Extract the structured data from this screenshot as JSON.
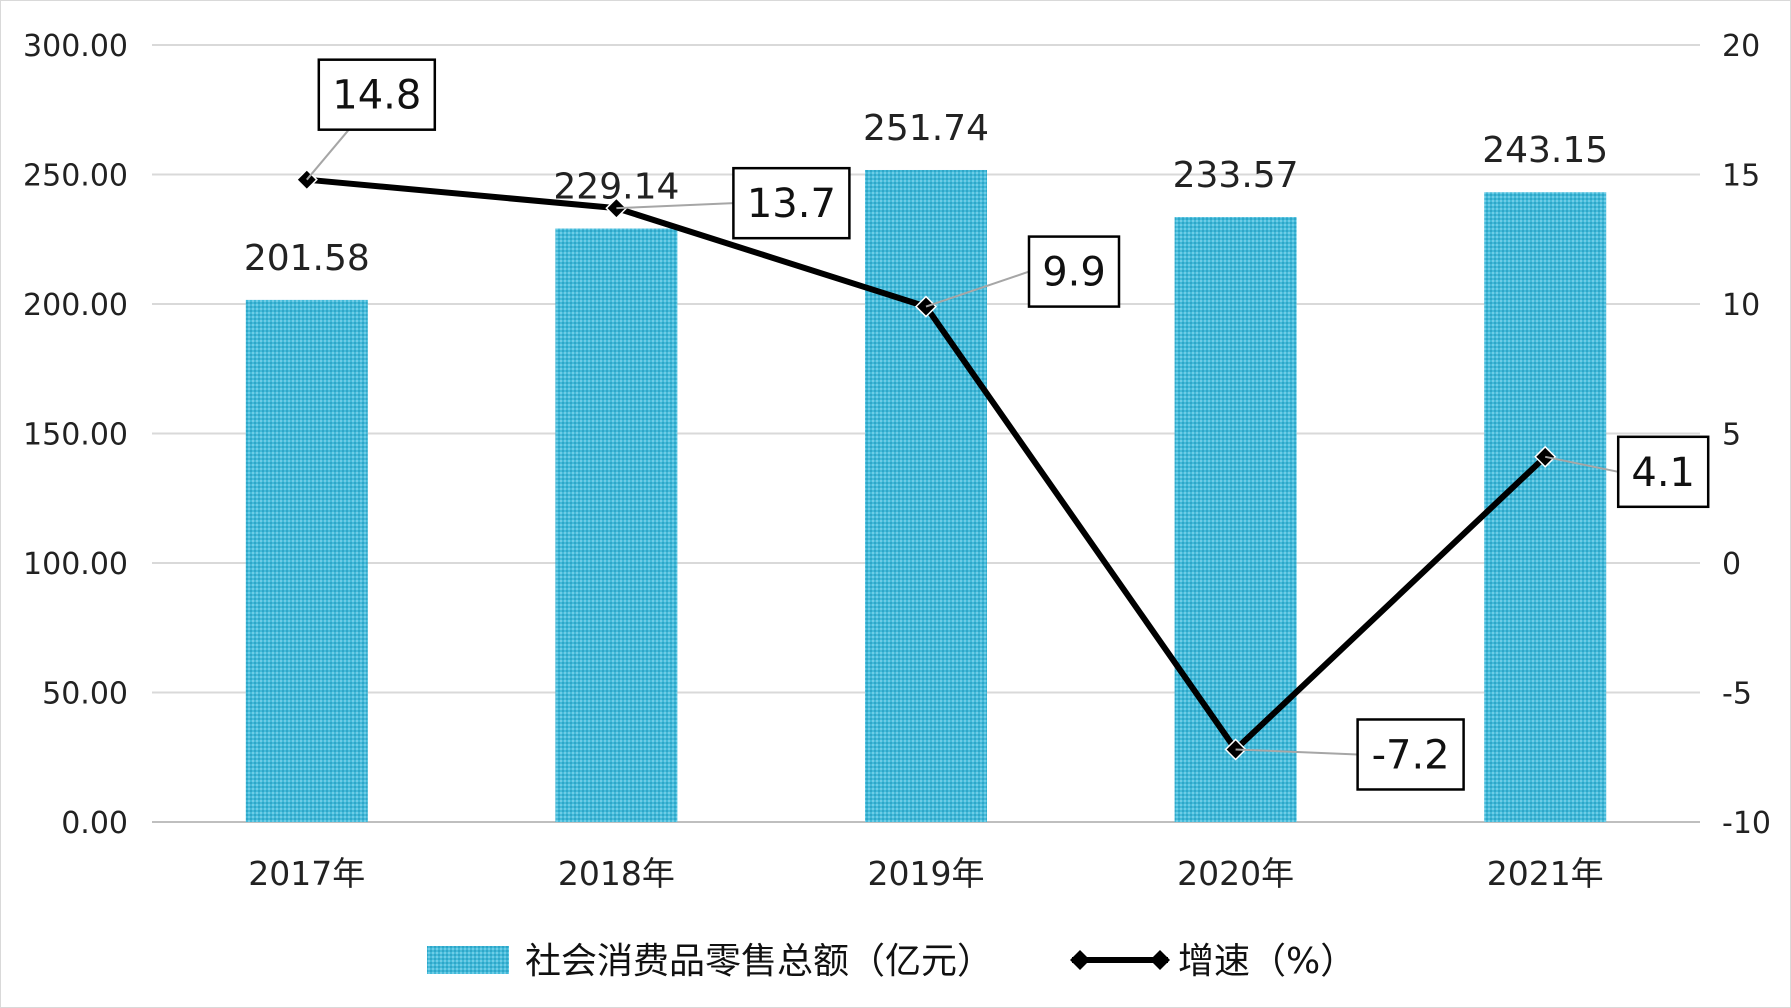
{
  "chart_data": {
    "type": "bar",
    "title": "",
    "categories": [
      "2017年",
      "2018年",
      "2019年",
      "2020年",
      "2021年"
    ],
    "series": [
      {
        "name": "社会消费品零售总额（亿元）",
        "type": "bar",
        "axis": "left",
        "values": [
          201.58,
          229.14,
          251.74,
          233.57,
          243.15
        ],
        "labels": [
          "201.58",
          "229.14",
          "251.74",
          "233.57",
          "243.15"
        ],
        "color": "#41B8D8"
      },
      {
        "name": "增速（%）",
        "type": "line",
        "axis": "right",
        "values": [
          14.8,
          13.7,
          9.9,
          -7.2,
          4.1
        ],
        "labels": [
          "14.8",
          "13.7",
          "9.9",
          "-7.2",
          "4.1"
        ],
        "color": "#000000"
      }
    ],
    "left_axis": {
      "ylim": [
        0,
        300
      ],
      "ticks": [
        0,
        50,
        100,
        150,
        200,
        250,
        300
      ],
      "tick_labels": [
        "0.00",
        "50.00",
        "100.00",
        "150.00",
        "200.00",
        "250.00",
        "300.00"
      ]
    },
    "right_axis": {
      "ylim": [
        -10,
        20
      ],
      "ticks": [
        -10,
        -5,
        0,
        5,
        10,
        15,
        20
      ],
      "tick_labels": [
        "-10",
        "-5",
        "0",
        "5",
        "10",
        "15",
        "20"
      ]
    },
    "grid": true,
    "legend": "bottom"
  }
}
